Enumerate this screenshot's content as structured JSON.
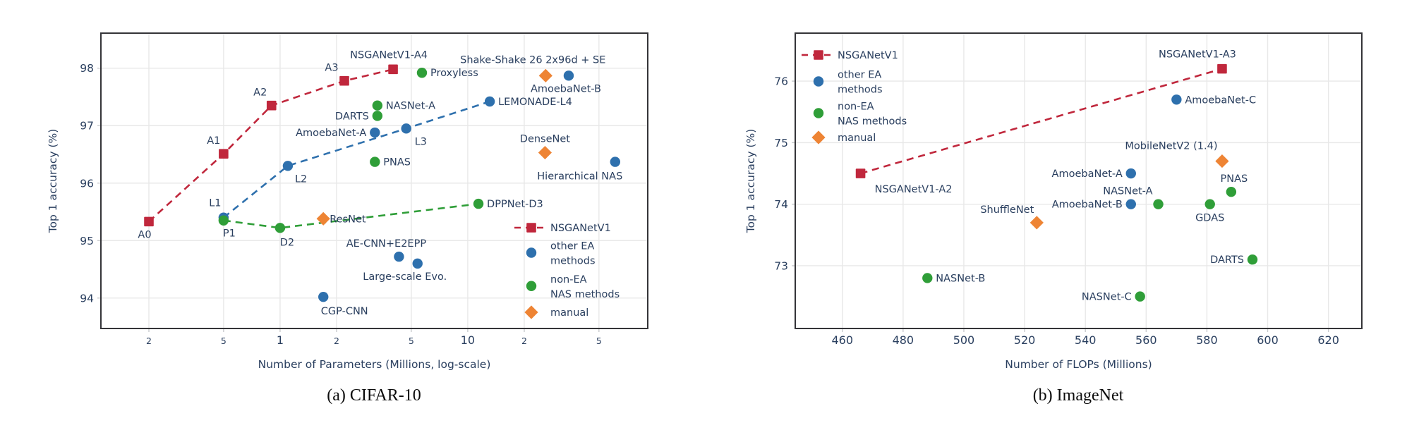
{
  "figure": {
    "background": "#ffffff",
    "text_color": "#2a3f5f",
    "grid_color": "#e8e8e8",
    "tick_mark_color": "#c9cbce",
    "frame_color": "#343438"
  },
  "chart_data": [
    {
      "id": "cifar10",
      "type": "scatter",
      "caption": "(a) CIFAR-10",
      "xlabel": "Number of Parameters (Millions, log-scale)",
      "ylabel": "Top 1 accuracy (%)",
      "xscale": "log",
      "xlim": [
        0.111,
        91
      ],
      "ylim": [
        93.47,
        98.61
      ],
      "grid": true,
      "legend_position": "inside-bottom-right",
      "xticks": [
        {
          "v": 0.2,
          "label": "2",
          "small": true
        },
        {
          "v": 0.5,
          "label": "5",
          "small": true
        },
        {
          "v": 1,
          "label": "1"
        },
        {
          "v": 2,
          "label": "2",
          "small": true
        },
        {
          "v": 5,
          "label": "5",
          "small": true
        },
        {
          "v": 10,
          "label": "10"
        },
        {
          "v": 20,
          "label": "2",
          "small": true
        },
        {
          "v": 50,
          "label": "5",
          "small": true
        }
      ],
      "yticks": [
        {
          "v": 94,
          "label": "94"
        },
        {
          "v": 95,
          "label": "95"
        },
        {
          "v": 96,
          "label": "96"
        },
        {
          "v": 97,
          "label": "97"
        },
        {
          "v": 98,
          "label": "98"
        }
      ],
      "legend": {
        "entries": [
          {
            "label": "NSGANetV1",
            "lines": [
              "NSGANetV1"
            ],
            "marker": "square",
            "color": "#c0273c",
            "dashed_line": true
          },
          {
            "label": "other EA methods",
            "lines": [
              "other EA",
              "methods"
            ],
            "marker": "circle",
            "color": "#2e70ad"
          },
          {
            "label": "non-EA NAS methods",
            "lines": [
              "non-EA",
              "NAS methods"
            ],
            "marker": "circle",
            "color": "#2f9e38"
          },
          {
            "label": "manual",
            "lines": [
              "manual"
            ],
            "marker": "diamond",
            "color": "#ee8434"
          }
        ]
      },
      "series": [
        {
          "name": "NSGANetV1",
          "group": "NSGANetV1",
          "color": "#c0273c",
          "marker": "square",
          "dashed_line": true,
          "points": [
            {
              "x": 0.2,
              "y": 95.33,
              "label": "A0",
              "pos": "below",
              "dx": -6,
              "dy": 2
            },
            {
              "x": 0.5,
              "y": 96.51,
              "label": "A1",
              "pos": "above",
              "dx": -14,
              "dy": -3
            },
            {
              "x": 0.9,
              "y": 97.35,
              "label": "A2",
              "pos": "above",
              "dx": -16,
              "dy": -3
            },
            {
              "x": 2.2,
              "y": 97.78,
              "label": "A3",
              "pos": "above",
              "dx": -18,
              "dy": -3
            },
            {
              "x": 4.0,
              "y": 97.98,
              "label": "NSGANetV1-A4",
              "pos": "above",
              "dx": -6,
              "dy": -5
            }
          ]
        },
        {
          "name": "LEMONADE",
          "group": "other EA methods",
          "color": "#2e70ad",
          "marker": "circle",
          "dashed_line": true,
          "points": [
            {
              "x": 0.5,
              "y": 95.4,
              "label": "L1",
              "pos": "above",
              "dx": -12,
              "dy": -5
            },
            {
              "x": 1.1,
              "y": 96.3,
              "label": "L2",
              "pos": "below-right",
              "dx": 4,
              "dy": 2
            },
            {
              "x": 4.7,
              "y": 96.95,
              "label": "L3",
              "pos": "below-right",
              "dx": 6,
              "dy": 2
            },
            {
              "x": 13.1,
              "y": 97.42,
              "label": "LEMONADE-L4",
              "pos": "right"
            }
          ]
        },
        {
          "name": "other EA methods",
          "group": "other EA methods",
          "color": "#2e70ad",
          "marker": "circle",
          "points": [
            {
              "x": 3.2,
              "y": 96.88,
              "label": "AmoebaNet-A",
              "pos": "left"
            },
            {
              "x": 34.5,
              "y": 97.87,
              "label": "AmoebaNet-B",
              "pos": "below",
              "dx": -4,
              "dy": 2
            },
            {
              "x": 4.3,
              "y": 94.72,
              "label": "AE-CNN+E2EPP",
              "pos": "above",
              "dx": -18,
              "dy": -3
            },
            {
              "x": 5.4,
              "y": 94.6,
              "label": "Large-scale Evo.",
              "pos": "below",
              "dx": -18,
              "dy": 2
            },
            {
              "x": 1.7,
              "y": 94.02,
              "label": "CGP-CNN",
              "pos": "below",
              "dx": 30,
              "dy": 4
            },
            {
              "x": 61,
              "y": 96.37,
              "label": "Hierarchical NAS",
              "pos": "below",
              "dx": -50,
              "dy": 4
            }
          ]
        },
        {
          "name": "DPPNet",
          "group": "non-EA NAS methods",
          "color": "#2f9e38",
          "marker": "circle",
          "dashed_line": true,
          "points": [
            {
              "x": 0.5,
              "y": 95.35,
              "label": "P1",
              "pos": "below",
              "dx": 8,
              "dy": 2
            },
            {
              "x": 1.0,
              "y": 95.22,
              "label": "D2",
              "pos": "below",
              "dx": 10,
              "dy": 4
            },
            {
              "x": 11.4,
              "y": 95.64,
              "label": "DPPNet-D3",
              "pos": "right"
            }
          ]
        },
        {
          "name": "non-EA NAS methods",
          "group": "non-EA NAS methods",
          "color": "#2f9e38",
          "marker": "circle",
          "points": [
            {
              "x": 5.7,
              "y": 97.92,
              "label": "Proxyless",
              "pos": "right"
            },
            {
              "x": 3.3,
              "y": 97.35,
              "label": "NASNet-A",
              "pos": "right"
            },
            {
              "x": 3.3,
              "y": 97.17,
              "label": "DARTS",
              "pos": "left"
            },
            {
              "x": 3.2,
              "y": 96.37,
              "label": "PNAS",
              "pos": "right"
            }
          ]
        },
        {
          "name": "manual",
          "group": "manual",
          "color": "#ee8434",
          "marker": "diamond",
          "points": [
            {
              "x": 1.7,
              "y": 95.38,
              "label": "ResNet",
              "pos": "right",
              "dx": -3
            },
            {
              "x": 25.8,
              "y": 96.53,
              "label": "DenseNet",
              "pos": "above",
              "dy": -4
            },
            {
              "x": 26,
              "y": 97.87,
              "label": "Shake-Shake 26 2x96d + SE",
              "pos": "above",
              "dx": -18,
              "dy": -7
            }
          ]
        }
      ]
    },
    {
      "id": "imagenet",
      "type": "scatter",
      "caption": "(b) ImageNet",
      "xlabel": "Number of FLOPs (Millions)",
      "ylabel": "Top 1 accuracy (%)",
      "xscale": "linear",
      "xlim": [
        444.5,
        631
      ],
      "ylim": [
        71.98,
        76.78
      ],
      "grid": true,
      "legend_position": "inside-top-left",
      "xticks": [
        {
          "v": 460,
          "label": "460"
        },
        {
          "v": 480,
          "label": "480"
        },
        {
          "v": 500,
          "label": "500"
        },
        {
          "v": 520,
          "label": "520"
        },
        {
          "v": 540,
          "label": "540"
        },
        {
          "v": 560,
          "label": "560"
        },
        {
          "v": 580,
          "label": "580"
        },
        {
          "v": 600,
          "label": "600"
        },
        {
          "v": 620,
          "label": "620"
        }
      ],
      "yticks": [
        {
          "v": 73,
          "label": "73"
        },
        {
          "v": 74,
          "label": "74"
        },
        {
          "v": 75,
          "label": "75"
        },
        {
          "v": 76,
          "label": "76"
        }
      ],
      "legend": {
        "entries": [
          {
            "label": "NSGANetV1",
            "lines": [
              "NSGANetV1"
            ],
            "marker": "square",
            "color": "#c0273c",
            "dashed_line": true
          },
          {
            "label": "other EA methods",
            "lines": [
              "other EA",
              "methods"
            ],
            "marker": "circle",
            "color": "#2e70ad"
          },
          {
            "label": "non-EA NAS methods",
            "lines": [
              "non-EA",
              "NAS methods"
            ],
            "marker": "circle",
            "color": "#2f9e38"
          },
          {
            "label": "manual",
            "lines": [
              "manual"
            ],
            "marker": "diamond",
            "color": "#ee8434"
          }
        ]
      },
      "series": [
        {
          "name": "NSGANetV1",
          "group": "NSGANetV1",
          "color": "#c0273c",
          "marker": "square",
          "dashed_line": true,
          "points": [
            {
              "x": 466,
              "y": 74.5,
              "label": "NSGANetV1-A2",
              "pos": "below",
              "dx": 75,
              "dy": 6
            },
            {
              "x": 585,
              "y": 76.2,
              "label": "NSGANetV1-A3",
              "pos": "above",
              "dx": -35,
              "dy": -5
            }
          ]
        },
        {
          "name": "other EA methods",
          "group": "other EA methods",
          "color": "#2e70ad",
          "marker": "circle",
          "points": [
            {
              "x": 570,
              "y": 75.7,
              "label": "AmoebaNet-C",
              "pos": "right"
            },
            {
              "x": 555,
              "y": 74.5,
              "label": "AmoebaNet-A",
              "pos": "left"
            },
            {
              "x": 555,
              "y": 74.0,
              "label": "AmoebaNet-B",
              "pos": "left"
            }
          ]
        },
        {
          "name": "non-EA NAS methods",
          "group": "non-EA NAS methods",
          "color": "#2f9e38",
          "marker": "circle",
          "points": [
            {
              "x": 564,
              "y": 74.0,
              "label": "NASNet-A",
              "pos": "above-left",
              "dx": -2,
              "dy": -3
            },
            {
              "x": 581,
              "y": 74.0,
              "label": "GDAS",
              "pos": "below",
              "dy": 3
            },
            {
              "x": 588,
              "y": 74.2,
              "label": "PNAS",
              "pos": "above",
              "dx": 4,
              "dy": -3
            },
            {
              "x": 595,
              "y": 73.1,
              "label": "DARTS",
              "pos": "left"
            },
            {
              "x": 488,
              "y": 72.8,
              "label": "NASNet-B",
              "pos": "right"
            },
            {
              "x": 558,
              "y": 72.5,
              "label": "NASNet-C",
              "pos": "left"
            }
          ]
        },
        {
          "name": "manual",
          "group": "manual",
          "color": "#ee8434",
          "marker": "diamond",
          "points": [
            {
              "x": 585,
              "y": 74.7,
              "label": "MobileNetV2 (1.4)",
              "pos": "above",
              "dx": -72,
              "dy": -6
            },
            {
              "x": 524,
              "y": 73.7,
              "label": "ShuffleNet",
              "pos": "above-left",
              "dx": 2,
              "dy": -3
            }
          ]
        }
      ]
    }
  ]
}
